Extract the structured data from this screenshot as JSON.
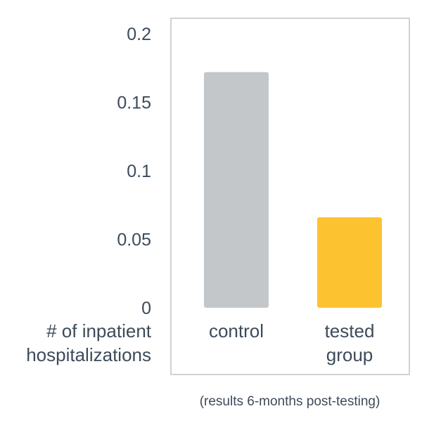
{
  "chart_data": {
    "type": "bar",
    "categories": [
      "control",
      "tested group"
    ],
    "category_label_lines": [
      [
        "control"
      ],
      [
        "tested",
        "group"
      ]
    ],
    "values": [
      0.172,
      0.066
    ],
    "colors": [
      "#c4c7c9",
      "#fdc230"
    ],
    "ylabel_lines": [
      "# of inpatient",
      "hospitalizations"
    ],
    "yticks": [
      "0",
      "0.05",
      "0.1",
      "0.15",
      "0.2"
    ],
    "ylim": [
      0,
      0.2
    ],
    "note": "(results 6-months post-testing)",
    "grid": false,
    "legend": "none"
  }
}
